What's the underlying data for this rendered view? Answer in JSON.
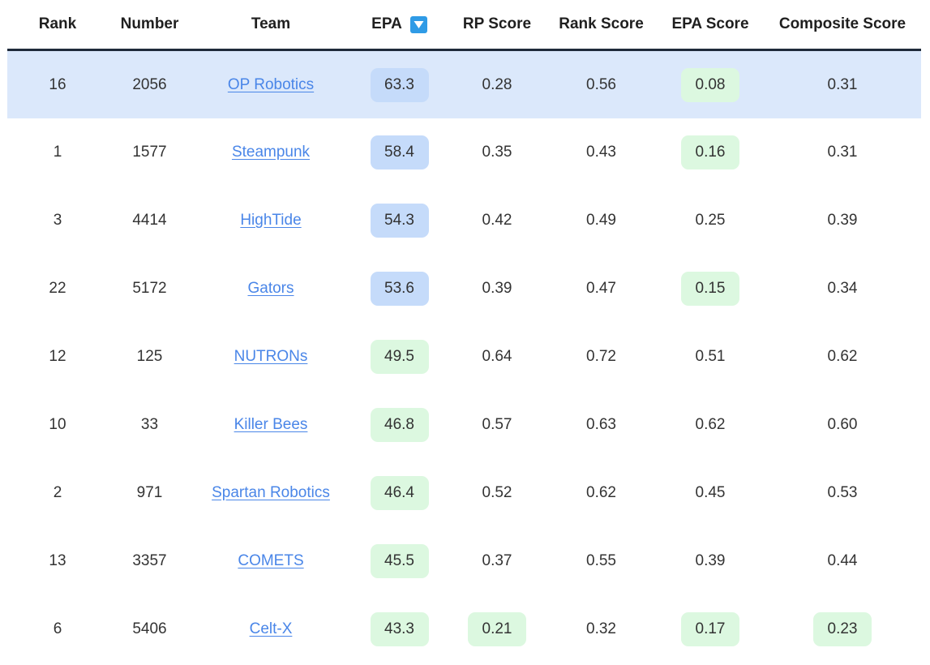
{
  "headers": {
    "rank": "Rank",
    "number": "Number",
    "team": "Team",
    "epa": "EPA",
    "rp_score": "RP Score",
    "rank_score": "Rank Score",
    "epa_score": "EPA Score",
    "composite_score": "Composite Score"
  },
  "sort": {
    "column": "EPA",
    "direction": "descending",
    "icon": "sort-down-icon"
  },
  "colors": {
    "highlight_row": "#dbe8fb",
    "pill_blue": "#c5dbfa",
    "pill_green": "#dcf8e0",
    "link": "#4a86e8",
    "sort_icon": "#2f9be6"
  },
  "rows": [
    {
      "rank": "16",
      "number": "2056",
      "team": "OP Robotics",
      "epa": "63.3",
      "epa_tint": "blue",
      "rp": "0.28",
      "rp_tint": "none",
      "rank_score": "0.56",
      "epa_score": "0.08",
      "epa_score_tint": "green",
      "composite": "0.31",
      "composite_tint": "none",
      "highlighted": true
    },
    {
      "rank": "1",
      "number": "1577",
      "team": "Steampunk",
      "epa": "58.4",
      "epa_tint": "blue",
      "rp": "0.35",
      "rp_tint": "none",
      "rank_score": "0.43",
      "epa_score": "0.16",
      "epa_score_tint": "green",
      "composite": "0.31",
      "composite_tint": "none",
      "highlighted": false
    },
    {
      "rank": "3",
      "number": "4414",
      "team": "HighTide",
      "epa": "54.3",
      "epa_tint": "blue",
      "rp": "0.42",
      "rp_tint": "none",
      "rank_score": "0.49",
      "epa_score": "0.25",
      "epa_score_tint": "none",
      "composite": "0.39",
      "composite_tint": "none",
      "highlighted": false
    },
    {
      "rank": "22",
      "number": "5172",
      "team": "Gators",
      "epa": "53.6",
      "epa_tint": "blue",
      "rp": "0.39",
      "rp_tint": "none",
      "rank_score": "0.47",
      "epa_score": "0.15",
      "epa_score_tint": "green",
      "composite": "0.34",
      "composite_tint": "none",
      "highlighted": false
    },
    {
      "rank": "12",
      "number": "125",
      "team": "NUTRONs",
      "epa": "49.5",
      "epa_tint": "green",
      "rp": "0.64",
      "rp_tint": "none",
      "rank_score": "0.72",
      "epa_score": "0.51",
      "epa_score_tint": "none",
      "composite": "0.62",
      "composite_tint": "none",
      "highlighted": false
    },
    {
      "rank": "10",
      "number": "33",
      "team": "Killer Bees",
      "epa": "46.8",
      "epa_tint": "green",
      "rp": "0.57",
      "rp_tint": "none",
      "rank_score": "0.63",
      "epa_score": "0.62",
      "epa_score_tint": "none",
      "composite": "0.60",
      "composite_tint": "none",
      "highlighted": false
    },
    {
      "rank": "2",
      "number": "971",
      "team": "Spartan Robotics",
      "epa": "46.4",
      "epa_tint": "green",
      "rp": "0.52",
      "rp_tint": "none",
      "rank_score": "0.62",
      "epa_score": "0.45",
      "epa_score_tint": "none",
      "composite": "0.53",
      "composite_tint": "none",
      "highlighted": false
    },
    {
      "rank": "13",
      "number": "3357",
      "team": "COMETS",
      "epa": "45.5",
      "epa_tint": "green",
      "rp": "0.37",
      "rp_tint": "none",
      "rank_score": "0.55",
      "epa_score": "0.39",
      "epa_score_tint": "none",
      "composite": "0.44",
      "composite_tint": "none",
      "highlighted": false
    },
    {
      "rank": "6",
      "number": "5406",
      "team": "Celt-X",
      "epa": "43.3",
      "epa_tint": "green",
      "rp": "0.21",
      "rp_tint": "green",
      "rank_score": "0.32",
      "epa_score": "0.17",
      "epa_score_tint": "green",
      "composite": "0.23",
      "composite_tint": "green",
      "highlighted": false
    }
  ]
}
